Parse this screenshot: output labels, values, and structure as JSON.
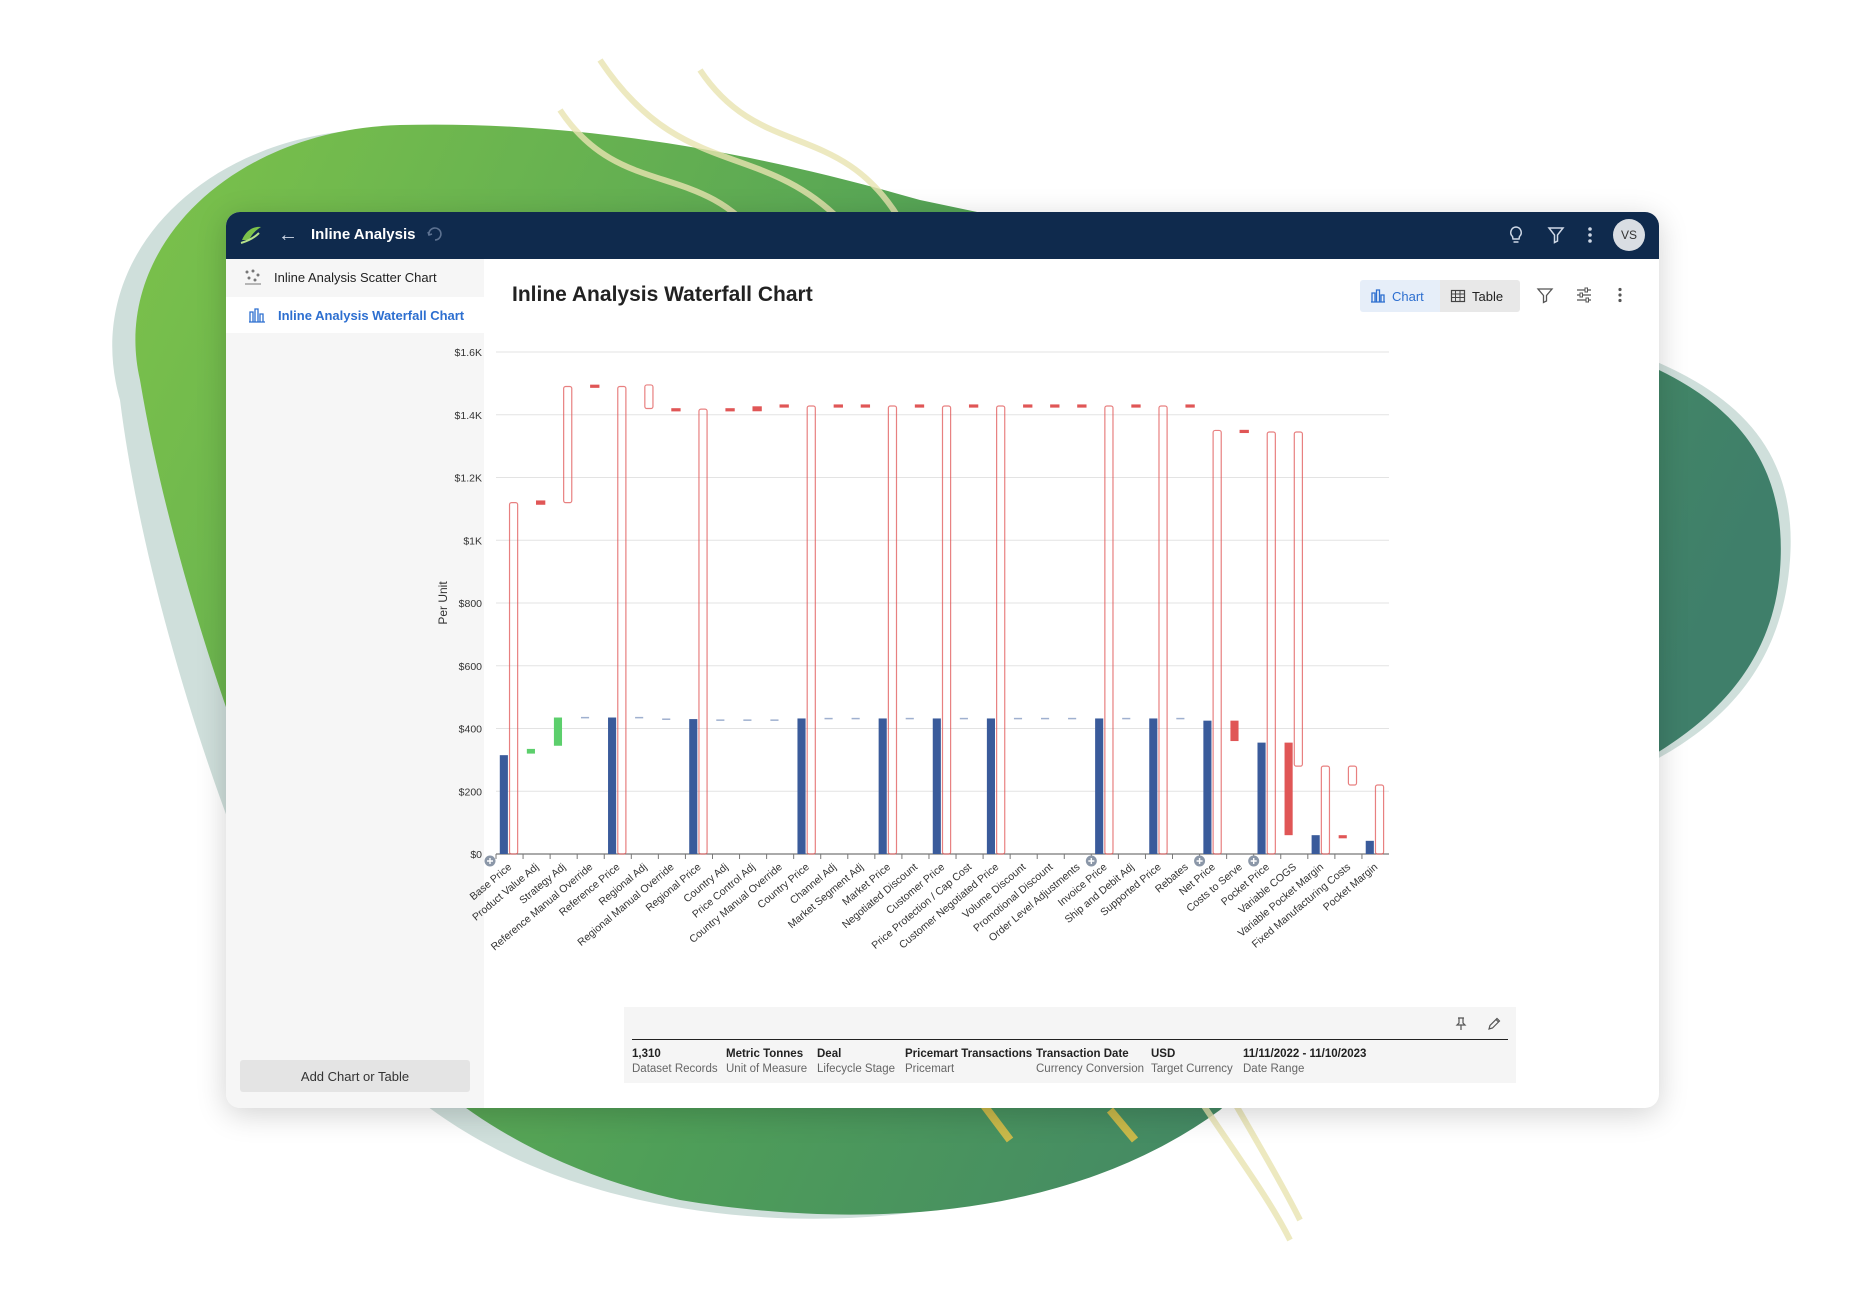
{
  "app": {
    "title": "Inline Analysis",
    "avatar_initials": "VS",
    "colors": {
      "topbar": "#0f2a4d",
      "accent": "#2d6fd0",
      "bar_blue": "#3a5b9b",
      "increase": "#5ccf6c",
      "decrease": "#e05656",
      "outline": "#f08c8c"
    }
  },
  "topbar_icons": [
    "logo-icon",
    "back-arrow-icon",
    "sync-icon",
    "lightbulb-icon",
    "filter-icon",
    "more-vertical-icon"
  ],
  "sidebar": {
    "items": [
      {
        "label": "Inline Analysis Scatter Chart",
        "icon": "scatter-chart-icon",
        "active": false
      },
      {
        "label": "Inline Analysis Waterfall Chart",
        "icon": "waterfall-chart-icon",
        "active": true
      }
    ],
    "add_button": "Add Chart or Table"
  },
  "main": {
    "title": "Inline Analysis Waterfall Chart",
    "view_toggle": {
      "chart_label": "Chart",
      "table_label": "Table",
      "selected": "Chart"
    },
    "header_icons": [
      "filter-icon",
      "settings-sliders-icon",
      "more-vertical-icon"
    ]
  },
  "chart_data": {
    "type": "bar",
    "subtype": "waterfall",
    "ylabel": "Per Unit",
    "ylim": [
      0,
      1600
    ],
    "yticks": [
      "$0",
      "$200",
      "$400",
      "$600",
      "$800",
      "$1K",
      "$1.2K",
      "$1.4K",
      "$1.6K"
    ],
    "grid": true,
    "categories": [
      "Base Price",
      "Product Value Adj",
      "Strategy Adj",
      "Reference Manual Override",
      "Reference Price",
      "Regional Adj",
      "Regional Manual Override",
      "Regional Price",
      "Country Adj",
      "Price Control Adj",
      "Country Manual Override",
      "Country Price",
      "Channel Adj",
      "Market Segment Adj",
      "Market Price",
      "Negotiated Discount",
      "Customer Price",
      "Price Protection / Cap Cost",
      "Customer Negotiated Price",
      "Volume Discount",
      "Promotional Discount",
      "Order Level Adjustments",
      "Invoice Price",
      "Ship and Debit Adj",
      "Supported Price",
      "Rebates",
      "Net Price",
      "Costs to Serve",
      "Pocket Price",
      "Variable COGS",
      "Variable Pocket Margin",
      "Fixed Manufacturing Costs",
      "Pocket Margin"
    ],
    "series": [
      {
        "kind": "solid-bars",
        "values": [
          {
            "start": 0,
            "end": 315
          },
          {
            "start": 320,
            "end": 335
          },
          {
            "start": 345,
            "end": 435
          },
          {
            "start": 433,
            "end": 437
          },
          {
            "start": 0,
            "end": 435
          },
          {
            "start": 433,
            "end": 437
          },
          {
            "start": 428,
            "end": 432
          },
          {
            "start": 0,
            "end": 430
          },
          {
            "start": 425,
            "end": 429
          },
          {
            "start": 425,
            "end": 429
          },
          {
            "start": 425,
            "end": 429
          },
          {
            "start": 0,
            "end": 432
          },
          {
            "start": 430,
            "end": 434
          },
          {
            "start": 430,
            "end": 434
          },
          {
            "start": 0,
            "end": 432
          },
          {
            "start": 430,
            "end": 434
          },
          {
            "start": 0,
            "end": 432
          },
          {
            "start": 430,
            "end": 434
          },
          {
            "start": 0,
            "end": 432
          },
          {
            "start": 430,
            "end": 434
          },
          {
            "start": 430,
            "end": 434
          },
          {
            "start": 430,
            "end": 434
          },
          {
            "start": 0,
            "end": 432
          },
          {
            "start": 430,
            "end": 434
          },
          {
            "start": 0,
            "end": 432
          },
          {
            "start": 430,
            "end": 434
          },
          {
            "start": 0,
            "end": 425
          },
          {
            "start": 360,
            "end": 425
          },
          {
            "start": 0,
            "end": 355
          },
          {
            "start": 60,
            "end": 355
          },
          {
            "start": 0,
            "end": 60
          },
          {
            "start": 50,
            "end": 60
          },
          {
            "start": 0,
            "end": 42
          }
        ]
      },
      {
        "kind": "outline-bars",
        "values": [
          {
            "start": 0,
            "end": 1120
          },
          {
            "start": 1115,
            "end": 1125
          },
          {
            "start": 1120,
            "end": 1490
          },
          {
            "start": 1488,
            "end": 1494
          },
          {
            "start": 0,
            "end": 1490
          },
          {
            "start": 1420,
            "end": 1495
          },
          {
            "start": 1413,
            "end": 1419
          },
          {
            "start": 0,
            "end": 1418
          },
          {
            "start": 1413,
            "end": 1419
          },
          {
            "start": 1413,
            "end": 1425
          },
          {
            "start": 1425,
            "end": 1431
          },
          {
            "start": 0,
            "end": 1428
          },
          {
            "start": 1425,
            "end": 1431
          },
          {
            "start": 1425,
            "end": 1431
          },
          {
            "start": 0,
            "end": 1428
          },
          {
            "start": 1425,
            "end": 1431
          },
          {
            "start": 0,
            "end": 1428
          },
          {
            "start": 1425,
            "end": 1431
          },
          {
            "start": 0,
            "end": 1428
          },
          {
            "start": 1425,
            "end": 1431
          },
          {
            "start": 1425,
            "end": 1431
          },
          {
            "start": 1425,
            "end": 1431
          },
          {
            "start": 0,
            "end": 1428
          },
          {
            "start": 1425,
            "end": 1431
          },
          {
            "start": 0,
            "end": 1428
          },
          {
            "start": 1425,
            "end": 1431
          },
          {
            "start": 0,
            "end": 1350
          },
          {
            "start": 1350,
            "end": 1350
          },
          {
            "start": 0,
            "end": 1345
          },
          {
            "start": 280,
            "end": 1345
          },
          {
            "start": 0,
            "end": 280
          },
          {
            "start": 220,
            "end": 280
          },
          {
            "start": 0,
            "end": 220
          }
        ]
      }
    ],
    "bar_colors_solid": [
      "total",
      "increase",
      "increase",
      "flat",
      "total",
      "flat",
      "flat",
      "total",
      "flat",
      "flat",
      "flat",
      "total",
      "flat",
      "flat",
      "total",
      "flat",
      "total",
      "flat",
      "total",
      "flat",
      "flat",
      "flat",
      "total",
      "flat",
      "total",
      "flat",
      "total",
      "decrease",
      "total",
      "decrease",
      "total",
      "decrease",
      "total"
    ],
    "expand_markers_after": [
      "Base Price",
      "Order Level Adjustments",
      "Rebates",
      "Costs to Serve"
    ]
  },
  "summary": {
    "items": [
      {
        "value": "1,310",
        "label": "Dataset Records"
      },
      {
        "value": "Metric Tonnes",
        "label": "Unit of Measure"
      },
      {
        "value": "Deal",
        "label": "Lifecycle Stage"
      },
      {
        "value": "Pricemart Transactions",
        "label": "Pricemart"
      },
      {
        "value": "Transaction Date",
        "label": "Currency Conversion"
      },
      {
        "value": "USD",
        "label": "Target Currency"
      },
      {
        "value": "11/11/2022 - 11/10/2023",
        "label": "Date Range"
      }
    ]
  }
}
